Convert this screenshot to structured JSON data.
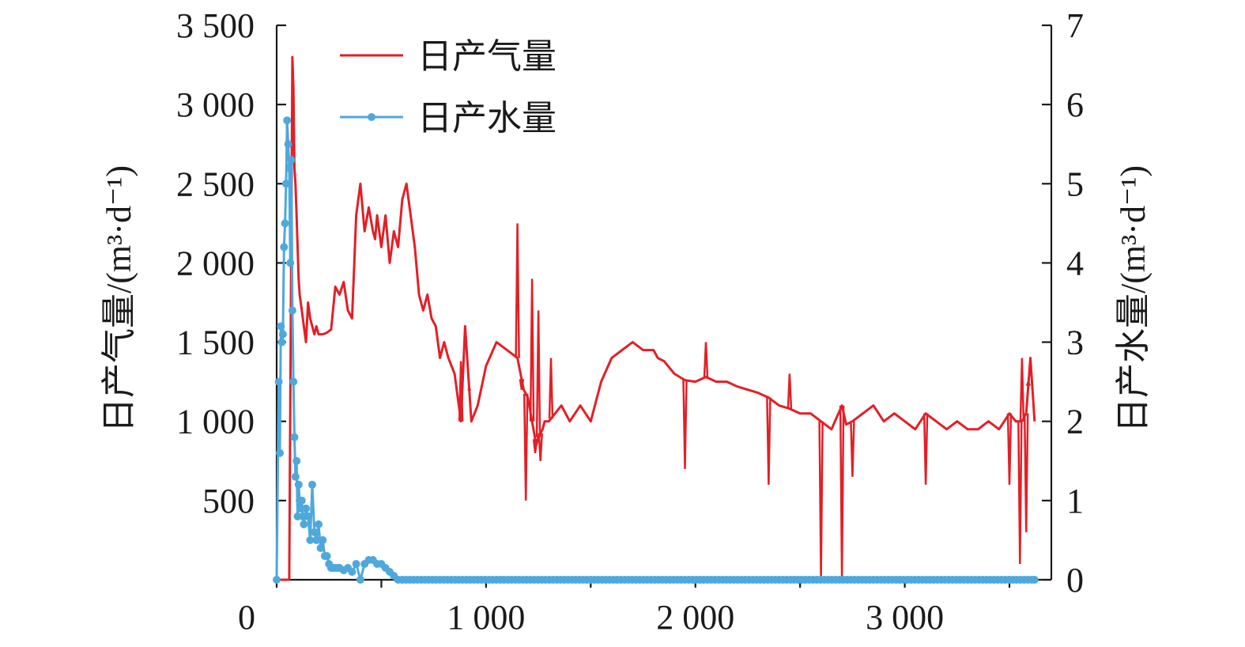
{
  "chart_data": {
    "type": "line",
    "xlabel": "",
    "ylabel_left": "日产气量/(m³·d⁻¹)",
    "ylabel_right": "日产水量/(m³·d⁻¹)",
    "xlim": [
      0,
      3700
    ],
    "ylim_left": [
      0,
      3500
    ],
    "ylim_right": [
      0,
      7
    ],
    "x_ticks": [
      {
        "value": 0,
        "label": "0"
      },
      {
        "value": 500,
        "label": ""
      },
      {
        "value": 1000,
        "label": "1 000"
      },
      {
        "value": 1500,
        "label": ""
      },
      {
        "value": 2000,
        "label": "2 000"
      },
      {
        "value": 2500,
        "label": ""
      },
      {
        "value": 3000,
        "label": "3 000"
      },
      {
        "value": 3500,
        "label": ""
      }
    ],
    "y_left_ticks": [
      {
        "value": 500,
        "label": "500"
      },
      {
        "value": 1000,
        "label": "1 000"
      },
      {
        "value": 1500,
        "label": "1 500"
      },
      {
        "value": 2000,
        "label": "2 000"
      },
      {
        "value": 2500,
        "label": "2 500"
      },
      {
        "value": 3000,
        "label": "3 000"
      },
      {
        "value": 3500,
        "label": "3 500"
      }
    ],
    "y_right_ticks": [
      {
        "value": 0,
        "label": "0"
      },
      {
        "value": 1,
        "label": "1"
      },
      {
        "value": 2,
        "label": "2"
      },
      {
        "value": 3,
        "label": "3"
      },
      {
        "value": 4,
        "label": "4"
      },
      {
        "value": 5,
        "label": "5"
      },
      {
        "value": 6,
        "label": "6"
      },
      {
        "value": 7,
        "label": "7"
      }
    ],
    "grid": false,
    "legend_position": "top-left",
    "series": [
      {
        "name": "日产气量",
        "axis": "left",
        "color": "#e31f26",
        "marker": "none",
        "x": [
          0,
          60,
          75,
          80,
          85,
          90,
          95,
          100,
          105,
          110,
          120,
          130,
          140,
          150,
          160,
          170,
          180,
          190,
          200,
          220,
          240,
          260,
          280,
          300,
          320,
          340,
          360,
          380,
          400,
          420,
          440,
          460,
          470,
          480,
          500,
          520,
          540,
          560,
          580,
          600,
          620,
          640,
          660,
          680,
          700,
          720,
          740,
          760,
          780,
          800,
          820,
          850,
          880,
          900,
          930,
          960,
          1000,
          1050,
          1100,
          1150,
          1180,
          1200,
          1220,
          1240,
          1250,
          1270,
          1280,
          1300,
          1330,
          1360,
          1400,
          1450,
          1500,
          1550,
          1600,
          1650,
          1700,
          1750,
          1800,
          1820,
          1850,
          1900,
          1950,
          2000,
          2050,
          2100,
          2150,
          2200,
          2250,
          2300,
          2350,
          2400,
          2450,
          2500,
          2550,
          2600,
          2650,
          2700,
          2720,
          2750,
          2800,
          2850,
          2900,
          2950,
          3000,
          3050,
          3100,
          3150,
          3200,
          3250,
          3300,
          3350,
          3400,
          3450,
          3500,
          3530,
          3540,
          3560,
          3580,
          3600,
          3610,
          3620
        ],
        "y": [
          0,
          0,
          3300,
          3100,
          2600,
          2500,
          2300,
          2100,
          1900,
          1800,
          1700,
          1600,
          1500,
          1750,
          1650,
          1600,
          1550,
          1600,
          1550,
          1550,
          1560,
          1580,
          1850,
          1800,
          1880,
          1700,
          1650,
          2300,
          2500,
          2200,
          2350,
          2200,
          2150,
          2300,
          2100,
          2300,
          2000,
          2200,
          2100,
          2400,
          2500,
          2300,
          2100,
          1800,
          1700,
          1800,
          1650,
          1600,
          1400,
          1500,
          1400,
          1300,
          1000,
          1600,
          1000,
          1100,
          1350,
          1500,
          1450,
          1400,
          1200,
          1150,
          1000,
          850,
          900,
          950,
          1000,
          1000,
          1050,
          1100,
          1000,
          1100,
          1000,
          1250,
          1400,
          1450,
          1500,
          1450,
          1450,
          1400,
          1380,
          1300,
          1260,
          1250,
          1280,
          1250,
          1250,
          1220,
          1200,
          1180,
          1150,
          1100,
          1080,
          1050,
          1050,
          1000,
          950,
          1100,
          980,
          1000,
          1050,
          1100,
          1000,
          1050,
          1000,
          950,
          1050,
          1000,
          950,
          1000,
          950,
          950,
          1000,
          950,
          1050,
          1000,
          1000,
          1000,
          1050,
          1400,
          1200,
          1000
        ],
        "spikes": [
          {
            "x": 880,
            "y": 1380
          },
          {
            "x": 920,
            "y": 1200
          },
          {
            "x": 1150,
            "y": 2250
          },
          {
            "x": 1170,
            "y": 1200
          },
          {
            "x": 1190,
            "y": 500
          },
          {
            "x": 1220,
            "y": 1900
          },
          {
            "x": 1235,
            "y": 800
          },
          {
            "x": 1250,
            "y": 1700
          },
          {
            "x": 1260,
            "y": 750
          },
          {
            "x": 1310,
            "y": 1400
          },
          {
            "x": 1950,
            "y": 700
          },
          {
            "x": 2050,
            "y": 1500
          },
          {
            "x": 2350,
            "y": 600
          },
          {
            "x": 2450,
            "y": 1300
          },
          {
            "x": 2600,
            "y": 0
          },
          {
            "x": 2700,
            "y": 0
          },
          {
            "x": 2750,
            "y": 650
          },
          {
            "x": 3100,
            "y": 600
          },
          {
            "x": 3500,
            "y": 600
          },
          {
            "x": 3550,
            "y": 100
          },
          {
            "x": 3560,
            "y": 1400
          },
          {
            "x": 3580,
            "y": 300
          },
          {
            "x": 3590,
            "y": 1250
          }
        ]
      },
      {
        "name": "日产水量",
        "axis": "right",
        "color": "#4ea8dc",
        "marker": "circle",
        "x": [
          0,
          10,
          15,
          20,
          25,
          30,
          35,
          40,
          45,
          50,
          55,
          60,
          65,
          70,
          75,
          80,
          85,
          90,
          95,
          100,
          105,
          110,
          115,
          120,
          125,
          130,
          140,
          150,
          160,
          170,
          180,
          190,
          200,
          210,
          220,
          230,
          240,
          250,
          260,
          270,
          280,
          290,
          300,
          320,
          340,
          360,
          380,
          400,
          420,
          440,
          460,
          480,
          500,
          520,
          540,
          560,
          580,
          600,
          3620
        ],
        "y": [
          0,
          2.5,
          1.6,
          3.2,
          3.0,
          3.1,
          4.2,
          4.5,
          5.0,
          5.8,
          5.5,
          5.2,
          4.0,
          5.3,
          3.4,
          2.5,
          1.8,
          1.3,
          1.5,
          0.8,
          1.2,
          1.0,
          0.9,
          1.0,
          0.8,
          0.7,
          0.9,
          0.8,
          0.5,
          1.2,
          0.6,
          0.5,
          0.7,
          0.4,
          0.5,
          0.3,
          0.3,
          0.2,
          0.15,
          0.15,
          0.15,
          0.15,
          0.15,
          0.12,
          0.15,
          0.1,
          0.2,
          0.0,
          0.2,
          0.25,
          0.25,
          0.2,
          0.2,
          0.15,
          0.1,
          0.05,
          0.0,
          0.0,
          0.0
        ]
      }
    ]
  }
}
